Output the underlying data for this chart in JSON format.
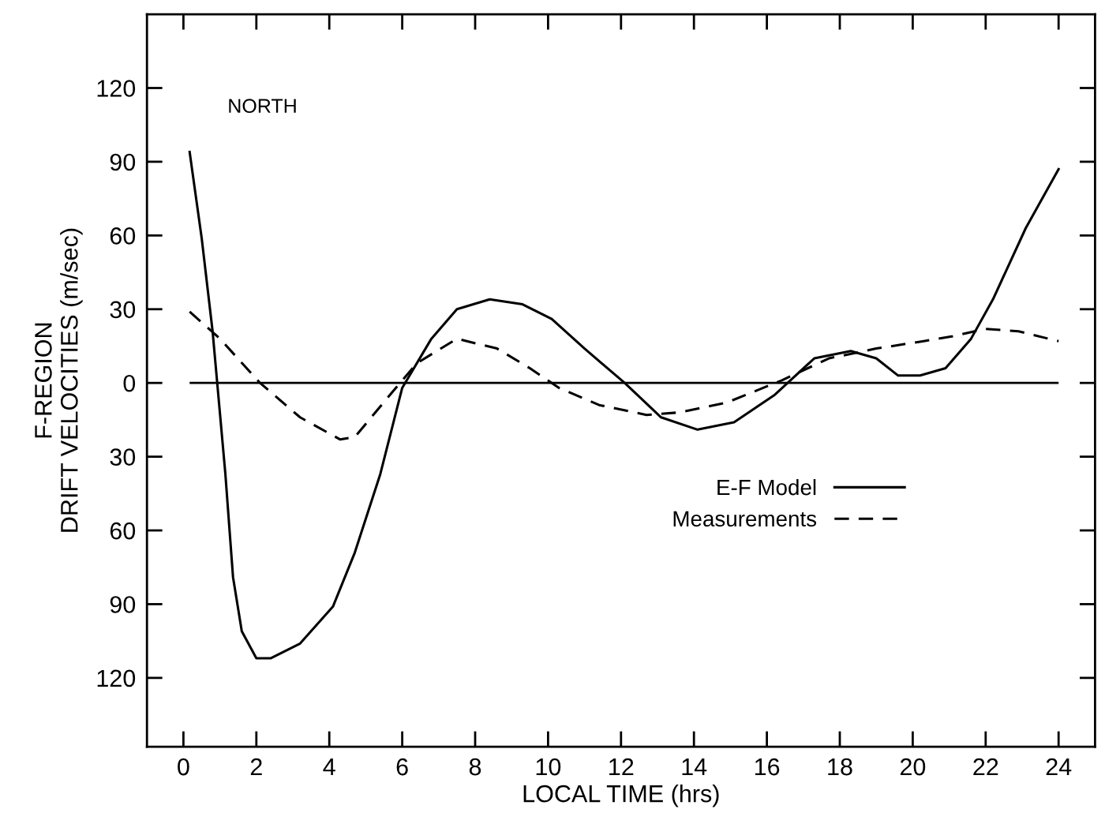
{
  "chart_data": {
    "type": "line",
    "xlabel": "LOCAL TIME (hrs)",
    "ylabel": "F-REGION\nDRIFT VELOCITIES (m/sec)",
    "xlim": [
      -1,
      25
    ],
    "xticks": [
      0,
      2,
      4,
      6,
      8,
      {
        "value": 10,
        "label": "10"
      },
      12,
      14,
      16,
      18,
      20,
      22,
      24
    ],
    "ylim": [
      -148,
      150
    ],
    "yticks": [
      {
        "value": -120,
        "label": "120"
      },
      {
        "value": -90,
        "label": "90"
      },
      {
        "value": -60,
        "label": "60"
      },
      {
        "value": -30,
        "label": "30"
      },
      0,
      30,
      60,
      90,
      120
    ],
    "legend": "right",
    "grid": false,
    "annotations": [
      "NORTH"
    ],
    "ref_lines": [
      {
        "axis": "y",
        "value": 0,
        "color": "#000000",
        "line_style": "solid"
      }
    ],
    "series": [
      {
        "name": "E-F Model",
        "color": "#000000",
        "line_style": "solid",
        "x": [
          0.17,
          0.5,
          0.8,
          1.15,
          1.36,
          1.6,
          2.0,
          2.4,
          3.2,
          4.1,
          4.7,
          5.4,
          6.0,
          6.8,
          7.5,
          8.4,
          9.3,
          10.1,
          11.0,
          12.1,
          13.1,
          14.1,
          15.1,
          16.2,
          17.3,
          18.3,
          19.0,
          19.6,
          20.2,
          20.9,
          21.6,
          22.2,
          23.1,
          24.0
        ],
        "values": [
          94,
          59,
          21,
          -37,
          -79,
          -101,
          -112,
          -112,
          -106,
          -91,
          -69,
          -37,
          -2,
          18,
          30,
          34,
          32,
          26,
          14,
          0,
          -14,
          -19,
          -16,
          -5,
          10,
          13,
          10,
          3,
          3,
          6,
          18,
          34,
          63,
          87
        ]
      },
      {
        "name": "Measurements",
        "color": "#000000",
        "line_style": "dashed",
        "x": [
          0.17,
          1.0,
          2.1,
          3.2,
          4.3,
          4.7,
          5.6,
          6.4,
          7.5,
          8.6,
          9.5,
          10.3,
          11.4,
          12.7,
          13.6,
          14.9,
          16.4,
          17.7,
          19.0,
          20.3,
          21.1,
          22.0,
          22.9,
          24.0
        ],
        "values": [
          29,
          18,
          0,
          -14,
          -23,
          -22,
          -6,
          8,
          18,
          14,
          6,
          -2,
          -9,
          -13,
          -12,
          -8,
          1,
          10,
          14,
          17,
          19,
          22,
          21,
          17
        ]
      }
    ]
  }
}
